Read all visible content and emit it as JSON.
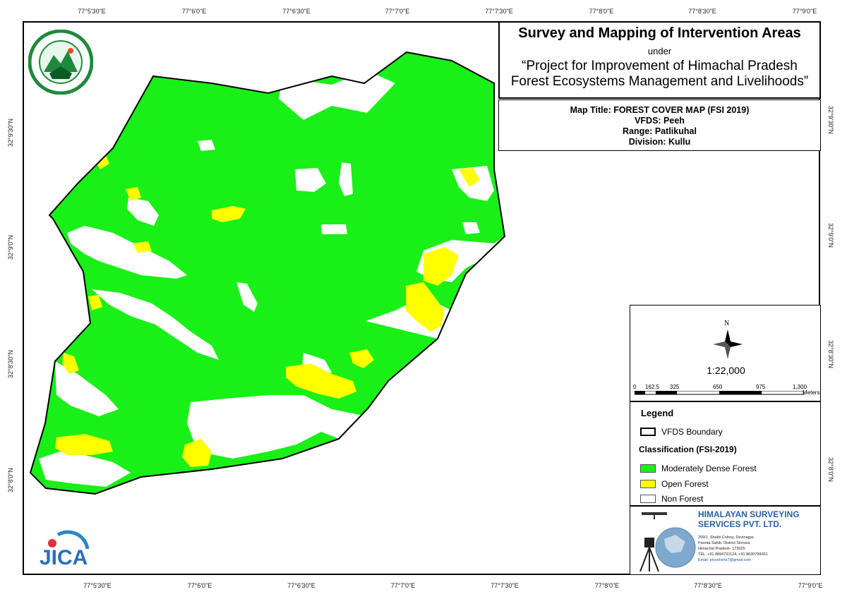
{
  "title": {
    "main": "Survey and Mapping of Intervention Areas",
    "under": "under",
    "project_line1": "“Project for Improvement of Himachal Pradesh",
    "project_line2": "Forest Ecosystems Management and Livelihoods”"
  },
  "info": {
    "map_title": "Map Title: FOREST COVER MAP (FSI 2019)",
    "vfds": "VFDS: Peeh",
    "range": "Range: Patlikuhal",
    "division": "Division: Kullu"
  },
  "axes": {
    "x_ticks": [
      "77°5'30\"E",
      "77°6'0\"E",
      "77°6'30\"E",
      "77°7'0\"E",
      "77°7'30\"E",
      "77°8'0\"E",
      "77°8'30\"E",
      "77°9'0\"E"
    ],
    "y_ticks": [
      "32°9'30\"N",
      "32°9'0\"N",
      "32°8'30\"N",
      "32°8'0\"N"
    ]
  },
  "north_arrow": {
    "label": "N"
  },
  "scale": {
    "ratio": "1:22,000",
    "labels": [
      "0",
      "162.5",
      "325",
      "650",
      "975",
      "1,300"
    ],
    "unit": "Meters"
  },
  "legend": {
    "title": "Legend",
    "boundary_label": "VFDS Boundary",
    "classification_title": "Classification (FSI-2019)",
    "items": [
      {
        "label": "Moderately Dense Forest",
        "color": "#18f018"
      },
      {
        "label": "Open Forest",
        "color": "#ffff00"
      },
      {
        "label": "Non Forest",
        "color": "#ffffff"
      }
    ]
  },
  "company": {
    "name_line1": "HIMALAYAN SURVEYING",
    "name_line2": "SERVICES PVT. LTD.",
    "address1": "259/1, Shakti Colony, Devinagar,",
    "address2": "Paonta Sahib, District Sirmour,",
    "address3": "Himachal Pradesh- 173025",
    "tel": "TEL: +91 8894731124, +91 8630799361",
    "email": "Email: piyushshs7@gmail.com"
  },
  "jica_logo": "JICA",
  "colors": {
    "dense": "#18f018",
    "open": "#ffff00",
    "non_forest": "#ffffff"
  }
}
